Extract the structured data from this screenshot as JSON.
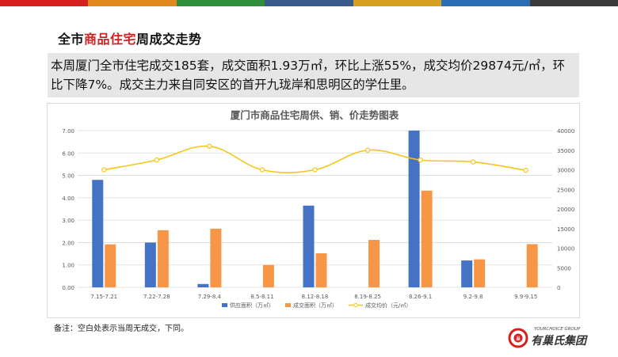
{
  "header": {
    "bar_colors": [
      "#d62020",
      "#e08a1e",
      "#2f8f3a",
      "#3a5a8c",
      "#d6a020",
      "#2a6fb5",
      "#3a3a3a"
    ],
    "title_prefix": "全市",
    "title_highlight": "商品住宅",
    "title_suffix": "周成交走势",
    "highlight_color": "#d62020"
  },
  "summary": {
    "text": "本周厦门全市住宅成交185套，成交面积1.93万㎡，环比上涨55%，成交均价29874元/㎡，环比下降7%。成交主力来自同安区的首开九珑岸和思明区的学仕里。"
  },
  "chart_data": {
    "type": "bar",
    "title": "厦门市商品住宅周供、销、价走势图表",
    "categories": [
      "7.15-7.21",
      "7.22-7.28",
      "7.29-8.4",
      "8.5-8.11",
      "8.12-8.18",
      "8.19-8.25",
      "8.26-9.1",
      "9.2-9.8",
      "9.9-9.15"
    ],
    "series": [
      {
        "name": "供应面积（万㎡）",
        "type": "bar",
        "axis": "left",
        "color": "#4472c4",
        "values": [
          4.8,
          2.0,
          0.15,
          null,
          3.65,
          null,
          7.0,
          1.2,
          null
        ]
      },
      {
        "name": "成交面积（万㎡）",
        "type": "bar",
        "axis": "left",
        "color": "#f79646",
        "values": [
          1.92,
          2.55,
          2.62,
          1.0,
          1.52,
          2.12,
          4.32,
          1.25,
          1.93
        ]
      },
      {
        "name": "成交均价（元/㎡）",
        "type": "line",
        "axis": "right",
        "color": "#f5c518",
        "values": [
          30000,
          32500,
          36000,
          30000,
          30000,
          35000,
          32500,
          32000,
          29874
        ]
      }
    ],
    "ylim_left": [
      0,
      7
    ],
    "yticks_left": [
      "0.00",
      "1.00",
      "2.00",
      "3.00",
      "4.00",
      "5.00",
      "6.00",
      "7.00"
    ],
    "ylim_right": [
      0,
      40000
    ],
    "yticks_right": [
      "0",
      "5000",
      "10000",
      "15000",
      "20000",
      "25000",
      "30000",
      "35000",
      "40000"
    ],
    "grid": true,
    "legend_position": "bottom"
  },
  "footer": {
    "note": "备注：空白处表示当周无成交，下同。",
    "logo_text": "有巢氏集团",
    "logo_subtext": "YOURCHOICE GROUP",
    "logo_mark": "巢"
  }
}
